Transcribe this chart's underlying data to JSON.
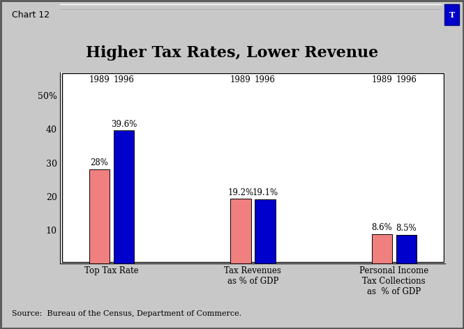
{
  "title": "Higher Tax Rates, Lower Revenue",
  "groups": [
    {
      "label": "Top Tax Rate",
      "values": [
        28.0,
        39.6
      ],
      "labels": [
        "28%",
        "39.6%"
      ]
    },
    {
      "label": "Tax Revenues\nas % of GDP",
      "values": [
        19.2,
        19.1
      ],
      "labels": [
        "19.2%",
        "19.1%"
      ]
    },
    {
      "label": "Personal Income\nTax Collections\nas  % of GDP",
      "values": [
        8.6,
        8.5
      ],
      "labels": [
        "8.6%",
        "8.5%"
      ]
    }
  ],
  "years": [
    "1989",
    "1996"
  ],
  "bar_colors": [
    "#F08080",
    "#0000CC"
  ],
  "ylim": [
    0,
    57
  ],
  "yticks": [
    10,
    20,
    30,
    40,
    50
  ],
  "ytick_labels": [
    "10",
    "20",
    "30",
    "40",
    "50%"
  ],
  "source": "Source:  Bureau of the Census, Department of Commerce.",
  "chart_label": "Chart 12",
  "outer_bg_color": "#C8C8C8",
  "plot_bg_color": "#FFFFFF",
  "title_fontsize": 16,
  "bar_width": 0.32,
  "group_centers": [
    1.0,
    3.2,
    5.4
  ]
}
